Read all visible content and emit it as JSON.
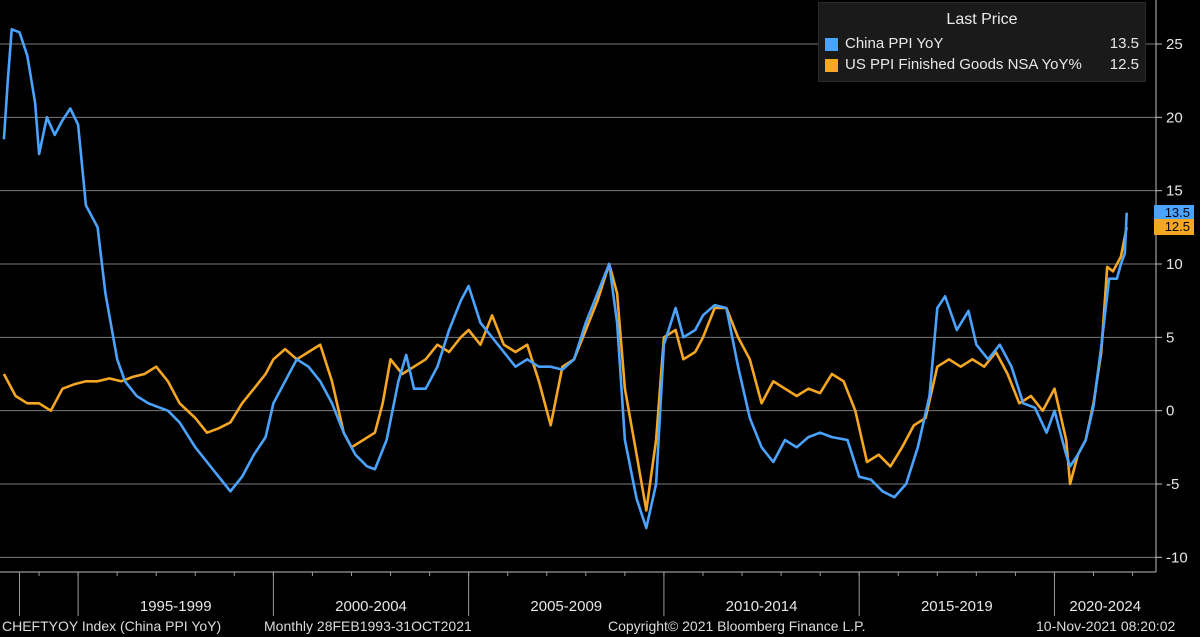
{
  "legend": {
    "header": "Last Price",
    "items": [
      {
        "label": "China PPI YoY",
        "value": "13.5",
        "color": "#4aa3ff"
      },
      {
        "label": "US PPI Finished Goods NSA YoY%",
        "value": "12.5",
        "color": "#f5a623"
      }
    ]
  },
  "price_tags": {
    "china": "13.5",
    "us": "12.5"
  },
  "footer": {
    "ticker": "CHEFTYOY Index (China PPI YoY)",
    "frequency": "Monthly 28FEB1993-31OCT2021",
    "copyright": "Copyright© 2021 Bloomberg Finance L.P.",
    "timestamp": "10-Nov-2021 08:20:02"
  },
  "chart_data": {
    "type": "line",
    "x_range": [
      1993.0,
      2022.6
    ],
    "ylim": [
      -11,
      28
    ],
    "y_ticks": [
      -10,
      -5,
      0,
      5,
      10,
      15,
      20,
      25
    ],
    "x_tick_labels": [
      "1995-1999",
      "2000-2004",
      "2005-2009",
      "2010-2014",
      "2015-2019",
      "2020-2024"
    ],
    "x_period_bounds": [
      1993.5,
      1995.0,
      2000.0,
      2005.0,
      2010.0,
      2015.0,
      2020.0
    ],
    "grid": "horizontal",
    "legend_position": "top-right",
    "series": [
      {
        "name": "China PPI YoY",
        "color": "#4aa3ff",
        "points": [
          [
            1993.1,
            18.5
          ],
          [
            1993.2,
            22.5
          ],
          [
            1993.3,
            26.0
          ],
          [
            1993.5,
            25.8
          ],
          [
            1993.7,
            24.2
          ],
          [
            1993.9,
            21.0
          ],
          [
            1994.0,
            17.5
          ],
          [
            1994.2,
            20.0
          ],
          [
            1994.4,
            18.8
          ],
          [
            1994.6,
            19.8
          ],
          [
            1994.8,
            20.6
          ],
          [
            1995.0,
            19.5
          ],
          [
            1995.2,
            14.0
          ],
          [
            1995.5,
            12.5
          ],
          [
            1995.7,
            8.0
          ],
          [
            1996.0,
            3.5
          ],
          [
            1996.2,
            2.0
          ],
          [
            1996.5,
            1.0
          ],
          [
            1996.8,
            0.5
          ],
          [
            1997.0,
            0.3
          ],
          [
            1997.3,
            0.0
          ],
          [
            1997.6,
            -0.8
          ],
          [
            1998.0,
            -2.5
          ],
          [
            1998.3,
            -3.5
          ],
          [
            1998.6,
            -4.5
          ],
          [
            1998.9,
            -5.5
          ],
          [
            1999.2,
            -4.5
          ],
          [
            1999.5,
            -3.0
          ],
          [
            1999.8,
            -1.8
          ],
          [
            2000.0,
            0.5
          ],
          [
            2000.3,
            2.0
          ],
          [
            2000.6,
            3.5
          ],
          [
            2000.9,
            3.0
          ],
          [
            2001.2,
            2.0
          ],
          [
            2001.5,
            0.5
          ],
          [
            2001.8,
            -1.5
          ],
          [
            2002.1,
            -3.0
          ],
          [
            2002.4,
            -3.8
          ],
          [
            2002.6,
            -4.0
          ],
          [
            2002.9,
            -2.0
          ],
          [
            2003.2,
            2.0
          ],
          [
            2003.4,
            3.8
          ],
          [
            2003.6,
            1.5
          ],
          [
            2003.9,
            1.5
          ],
          [
            2004.2,
            3.0
          ],
          [
            2004.5,
            5.5
          ],
          [
            2004.8,
            7.5
          ],
          [
            2005.0,
            8.5
          ],
          [
            2005.3,
            6.0
          ],
          [
            2005.6,
            5.0
          ],
          [
            2005.9,
            4.0
          ],
          [
            2006.2,
            3.0
          ],
          [
            2006.5,
            3.5
          ],
          [
            2006.8,
            3.0
          ],
          [
            2007.1,
            3.0
          ],
          [
            2007.4,
            2.8
          ],
          [
            2007.7,
            3.5
          ],
          [
            2008.0,
            6.0
          ],
          [
            2008.3,
            8.0
          ],
          [
            2008.6,
            10.0
          ],
          [
            2008.8,
            6.0
          ],
          [
            2009.0,
            -2.0
          ],
          [
            2009.3,
            -6.0
          ],
          [
            2009.55,
            -8.0
          ],
          [
            2009.8,
            -5.0
          ],
          [
            2010.0,
            4.5
          ],
          [
            2010.3,
            7.0
          ],
          [
            2010.5,
            5.0
          ],
          [
            2010.8,
            5.5
          ],
          [
            2011.0,
            6.5
          ],
          [
            2011.3,
            7.2
          ],
          [
            2011.6,
            7.0
          ],
          [
            2011.9,
            3.0
          ],
          [
            2012.2,
            -0.5
          ],
          [
            2012.5,
            -2.5
          ],
          [
            2012.8,
            -3.5
          ],
          [
            2013.1,
            -2.0
          ],
          [
            2013.4,
            -2.5
          ],
          [
            2013.7,
            -1.8
          ],
          [
            2014.0,
            -1.5
          ],
          [
            2014.3,
            -1.8
          ],
          [
            2014.7,
            -2.0
          ],
          [
            2015.0,
            -4.5
          ],
          [
            2015.3,
            -4.7
          ],
          [
            2015.6,
            -5.5
          ],
          [
            2015.9,
            -5.9
          ],
          [
            2016.2,
            -5.0
          ],
          [
            2016.5,
            -2.5
          ],
          [
            2016.8,
            1.0
          ],
          [
            2017.0,
            7.0
          ],
          [
            2017.2,
            7.8
          ],
          [
            2017.5,
            5.5
          ],
          [
            2017.8,
            6.8
          ],
          [
            2018.0,
            4.5
          ],
          [
            2018.3,
            3.5
          ],
          [
            2018.6,
            4.5
          ],
          [
            2018.9,
            3.0
          ],
          [
            2019.2,
            0.5
          ],
          [
            2019.5,
            0.2
          ],
          [
            2019.8,
            -1.5
          ],
          [
            2020.0,
            0.0
          ],
          [
            2020.3,
            -3.0
          ],
          [
            2020.4,
            -3.8
          ],
          [
            2020.6,
            -3.0
          ],
          [
            2020.8,
            -2.0
          ],
          [
            2021.0,
            0.3
          ],
          [
            2021.2,
            4.4
          ],
          [
            2021.4,
            9.0
          ],
          [
            2021.6,
            9.0
          ],
          [
            2021.7,
            10.0
          ],
          [
            2021.8,
            10.7
          ],
          [
            2021.85,
            13.5
          ]
        ]
      },
      {
        "name": "US PPI Finished Goods NSA YoY%",
        "color": "#f5a623",
        "points": [
          [
            1993.1,
            2.5
          ],
          [
            1993.4,
            1.0
          ],
          [
            1993.7,
            0.5
          ],
          [
            1994.0,
            0.5
          ],
          [
            1994.3,
            0.0
          ],
          [
            1994.6,
            1.5
          ],
          [
            1994.9,
            1.8
          ],
          [
            1995.2,
            2.0
          ],
          [
            1995.5,
            2.0
          ],
          [
            1995.8,
            2.2
          ],
          [
            1996.1,
            2.0
          ],
          [
            1996.4,
            2.3
          ],
          [
            1996.7,
            2.5
          ],
          [
            1997.0,
            3.0
          ],
          [
            1997.3,
            2.0
          ],
          [
            1997.6,
            0.5
          ],
          [
            1998.0,
            -0.5
          ],
          [
            1998.3,
            -1.5
          ],
          [
            1998.6,
            -1.2
          ],
          [
            1998.9,
            -0.8
          ],
          [
            1999.2,
            0.5
          ],
          [
            1999.5,
            1.5
          ],
          [
            1999.8,
            2.5
          ],
          [
            2000.0,
            3.5
          ],
          [
            2000.3,
            4.2
          ],
          [
            2000.6,
            3.5
          ],
          [
            2000.9,
            4.0
          ],
          [
            2001.2,
            4.5
          ],
          [
            2001.5,
            2.0
          ],
          [
            2001.8,
            -1.5
          ],
          [
            2002.0,
            -2.5
          ],
          [
            2002.3,
            -2.0
          ],
          [
            2002.6,
            -1.5
          ],
          [
            2002.8,
            0.5
          ],
          [
            2003.0,
            3.5
          ],
          [
            2003.3,
            2.5
          ],
          [
            2003.6,
            3.0
          ],
          [
            2003.9,
            3.5
          ],
          [
            2004.2,
            4.5
          ],
          [
            2004.5,
            4.0
          ],
          [
            2004.8,
            5.0
          ],
          [
            2005.0,
            5.5
          ],
          [
            2005.3,
            4.5
          ],
          [
            2005.6,
            6.5
          ],
          [
            2005.9,
            4.5
          ],
          [
            2006.2,
            4.0
          ],
          [
            2006.5,
            4.5
          ],
          [
            2006.8,
            2.0
          ],
          [
            2007.1,
            -1.0
          ],
          [
            2007.4,
            3.0
          ],
          [
            2007.7,
            3.5
          ],
          [
            2008.0,
            5.5
          ],
          [
            2008.3,
            7.5
          ],
          [
            2008.6,
            10.0
          ],
          [
            2008.8,
            8.0
          ],
          [
            2009.0,
            1.5
          ],
          [
            2009.3,
            -3.0
          ],
          [
            2009.55,
            -6.8
          ],
          [
            2009.8,
            -2.0
          ],
          [
            2010.0,
            5.0
          ],
          [
            2010.3,
            5.5
          ],
          [
            2010.5,
            3.5
          ],
          [
            2010.8,
            4.0
          ],
          [
            2011.0,
            5.0
          ],
          [
            2011.3,
            7.0
          ],
          [
            2011.6,
            7.0
          ],
          [
            2011.9,
            5.0
          ],
          [
            2012.2,
            3.5
          ],
          [
            2012.5,
            0.5
          ],
          [
            2012.8,
            2.0
          ],
          [
            2013.1,
            1.5
          ],
          [
            2013.4,
            1.0
          ],
          [
            2013.7,
            1.5
          ],
          [
            2014.0,
            1.2
          ],
          [
            2014.3,
            2.5
          ],
          [
            2014.6,
            2.0
          ],
          [
            2014.9,
            0.0
          ],
          [
            2015.2,
            -3.5
          ],
          [
            2015.5,
            -3.0
          ],
          [
            2015.8,
            -3.8
          ],
          [
            2016.1,
            -2.5
          ],
          [
            2016.4,
            -1.0
          ],
          [
            2016.7,
            -0.5
          ],
          [
            2017.0,
            3.0
          ],
          [
            2017.3,
            3.5
          ],
          [
            2017.6,
            3.0
          ],
          [
            2017.9,
            3.5
          ],
          [
            2018.2,
            3.0
          ],
          [
            2018.5,
            4.0
          ],
          [
            2018.8,
            2.5
          ],
          [
            2019.1,
            0.5
          ],
          [
            2019.4,
            1.0
          ],
          [
            2019.7,
            0.0
          ],
          [
            2020.0,
            1.5
          ],
          [
            2020.3,
            -2.0
          ],
          [
            2020.4,
            -5.0
          ],
          [
            2020.6,
            -3.0
          ],
          [
            2020.8,
            -2.0
          ],
          [
            2021.0,
            0.5
          ],
          [
            2021.2,
            4.0
          ],
          [
            2021.35,
            9.8
          ],
          [
            2021.5,
            9.5
          ],
          [
            2021.7,
            10.5
          ],
          [
            2021.85,
            12.5
          ]
        ]
      }
    ]
  }
}
